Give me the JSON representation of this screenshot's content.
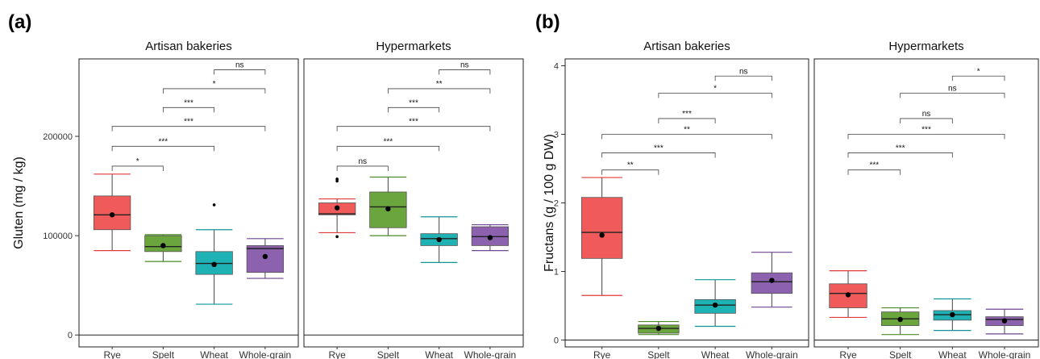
{
  "colors": {
    "Rye": "#F05A5A",
    "Spelt": "#6BA53D",
    "Wheat": "#1FB2B4",
    "Whole-grain": "#8C61AE",
    "rye_stroke": "#E0393B",
    "spelt_stroke": "#4E8A27",
    "wheat_stroke": "#0F9698",
    "whole_stroke": "#6E4691"
  },
  "chart_data": [
    {
      "type": "box",
      "panel_label": "(a)",
      "ylabel": "Gluten (mg / kg)",
      "ylim": [
        -12000,
        278000
      ],
      "yticks": [
        0,
        100000,
        200000
      ],
      "ytick_labels": [
        "0",
        "100000",
        "200000"
      ],
      "categories": [
        "Rye",
        "Spelt",
        "Wheat",
        "Whole-grain"
      ],
      "facets": [
        {
          "title": "Artisan bakeries",
          "boxes": [
            {
              "category": "Rye",
              "low": 85000,
              "q1": 106000,
              "median": 121000,
              "q3": 140000,
              "high": 162000,
              "mean": 121000,
              "outliers": []
            },
            {
              "category": "Spelt",
              "low": 74000,
              "q1": 84000,
              "median": 89000,
              "q3": 100000,
              "high": 101000,
              "mean": 90000,
              "outliers": []
            },
            {
              "category": "Wheat",
              "low": 31000,
              "q1": 61000,
              "median": 72000,
              "q3": 84000,
              "high": 106000,
              "mean": 71000,
              "outliers": [
                131000
              ]
            },
            {
              "category": "Whole-grain",
              "low": 57000,
              "q1": 63000,
              "median": 87000,
              "q3": 90000,
              "high": 97000,
              "mean": 79000,
              "outliers": []
            }
          ],
          "comparisons": [
            {
              "from": "Rye",
              "to": "Spelt",
              "label": "*",
              "y": 170000
            },
            {
              "from": "Rye",
              "to": "Wheat",
              "label": "***",
              "y": 190000
            },
            {
              "from": "Rye",
              "to": "Whole-grain",
              "label": "***",
              "y": 210000
            },
            {
              "from": "Spelt",
              "to": "Wheat",
              "label": "***",
              "y": 229000
            },
            {
              "from": "Spelt",
              "to": "Whole-grain",
              "label": "*",
              "y": 248000
            },
            {
              "from": "Wheat",
              "to": "Whole-grain",
              "label": "ns",
              "y": 267000
            }
          ]
        },
        {
          "title": "Hypermarkets",
          "boxes": [
            {
              "category": "Rye",
              "low": 103000,
              "q1": 121000,
              "median": 122000,
              "q3": 133000,
              "high": 137000,
              "mean": 128000,
              "outliers": [
                99000,
                155000,
                157000
              ]
            },
            {
              "category": "Spelt",
              "low": 100000,
              "q1": 108000,
              "median": 129000,
              "q3": 144000,
              "high": 159000,
              "mean": 127000,
              "outliers": []
            },
            {
              "category": "Wheat",
              "low": 73000,
              "q1": 90000,
              "median": 97000,
              "q3": 102000,
              "high": 119000,
              "mean": 96000,
              "outliers": []
            },
            {
              "category": "Whole-grain",
              "low": 85000,
              "q1": 90000,
              "median": 99000,
              "q3": 109000,
              "high": 111000,
              "mean": 98000,
              "outliers": []
            }
          ],
          "comparisons": [
            {
              "from": "Rye",
              "to": "Spelt",
              "label": "ns",
              "y": 170000
            },
            {
              "from": "Rye",
              "to": "Wheat",
              "label": "***",
              "y": 190000
            },
            {
              "from": "Rye",
              "to": "Whole-grain",
              "label": "***",
              "y": 210000
            },
            {
              "from": "Spelt",
              "to": "Wheat",
              "label": "***",
              "y": 229000
            },
            {
              "from": "Spelt",
              "to": "Whole-grain",
              "label": "**",
              "y": 248000
            },
            {
              "from": "Wheat",
              "to": "Whole-grain",
              "label": "ns",
              "y": 267000
            }
          ]
        }
      ]
    },
    {
      "type": "box",
      "panel_label": "(b)",
      "ylabel": "Fructans (g / 100 g DW)",
      "ylim": [
        -0.1,
        4.1
      ],
      "yticks": [
        0,
        1,
        2,
        3,
        4
      ],
      "ytick_labels": [
        "0",
        "1",
        "2",
        "3",
        "4"
      ],
      "categories": [
        "Rye",
        "Spelt",
        "Wheat",
        "Whole-grain"
      ],
      "facets": [
        {
          "title": "Artisan bakeries",
          "boxes": [
            {
              "category": "Rye",
              "low": 0.65,
              "q1": 1.19,
              "median": 1.57,
              "q3": 2.08,
              "high": 2.37,
              "mean": 1.53,
              "outliers": []
            },
            {
              "category": "Spelt",
              "low": 0.08,
              "q1": 0.1,
              "median": 0.17,
              "q3": 0.22,
              "high": 0.27,
              "mean": 0.17,
              "outliers": []
            },
            {
              "category": "Wheat",
              "low": 0.2,
              "q1": 0.39,
              "median": 0.51,
              "q3": 0.59,
              "high": 0.88,
              "mean": 0.51,
              "outliers": []
            },
            {
              "category": "Whole-grain",
              "low": 0.48,
              "q1": 0.68,
              "median": 0.85,
              "q3": 0.98,
              "high": 1.28,
              "mean": 0.87,
              "outliers": []
            }
          ],
          "comparisons": [
            {
              "from": "Rye",
              "to": "Spelt",
              "label": "**",
              "y": 2.48
            },
            {
              "from": "Rye",
              "to": "Wheat",
              "label": "***",
              "y": 2.73
            },
            {
              "from": "Rye",
              "to": "Whole-grain",
              "label": "**",
              "y": 3.0
            },
            {
              "from": "Spelt",
              "to": "Wheat",
              "label": "***",
              "y": 3.23
            },
            {
              "from": "Spelt",
              "to": "Whole-grain",
              "label": "*",
              "y": 3.6
            },
            {
              "from": "Wheat",
              "to": "Whole-grain",
              "label": "ns",
              "y": 3.85
            }
          ]
        },
        {
          "title": "Hypermarkets",
          "boxes": [
            {
              "category": "Rye",
              "low": 0.33,
              "q1": 0.47,
              "median": 0.68,
              "q3": 0.82,
              "high": 1.01,
              "mean": 0.66,
              "outliers": []
            },
            {
              "category": "Spelt",
              "low": 0.08,
              "q1": 0.21,
              "median": 0.31,
              "q3": 0.41,
              "high": 0.47,
              "mean": 0.3,
              "outliers": []
            },
            {
              "category": "Wheat",
              "low": 0.14,
              "q1": 0.29,
              "median": 0.37,
              "q3": 0.43,
              "high": 0.6,
              "mean": 0.37,
              "outliers": []
            },
            {
              "category": "Whole-grain",
              "low": 0.09,
              "q1": 0.21,
              "median": 0.3,
              "q3": 0.34,
              "high": 0.45,
              "mean": 0.28,
              "outliers": []
            }
          ],
          "comparisons": [
            {
              "from": "Rye",
              "to": "Spelt",
              "label": "***",
              "y": 2.48
            },
            {
              "from": "Rye",
              "to": "Wheat",
              "label": "***",
              "y": 2.73
            },
            {
              "from": "Rye",
              "to": "Whole-grain",
              "label": "***",
              "y": 3.0
            },
            {
              "from": "Spelt",
              "to": "Wheat",
              "label": "ns",
              "y": 3.23
            },
            {
              "from": "Spelt",
              "to": "Whole-grain",
              "label": "ns",
              "y": 3.6
            },
            {
              "from": "Wheat",
              "to": "Whole-grain",
              "label": "*",
              "y": 3.85
            }
          ]
        }
      ]
    }
  ]
}
